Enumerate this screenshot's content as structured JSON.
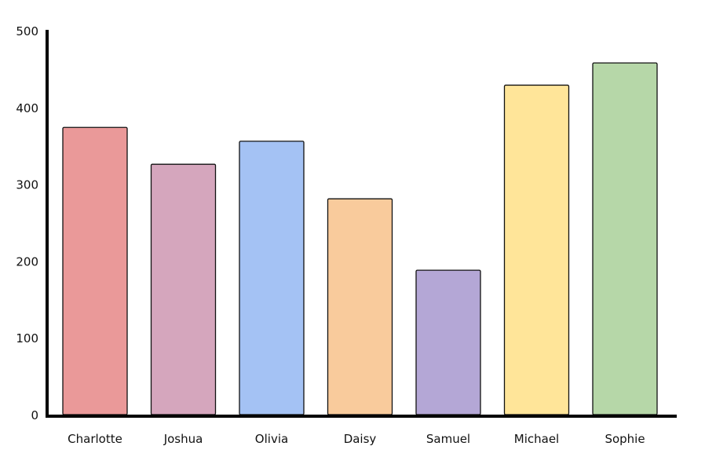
{
  "chart_data": {
    "type": "bar",
    "categories": [
      "Charlotte",
      "Joshua",
      "Olivia",
      "Daisy",
      "Samuel",
      "Michael",
      "Sophie"
    ],
    "values": [
      375,
      327,
      357,
      282,
      189,
      430,
      459
    ],
    "colors": [
      "#ea9999",
      "#d5a6bd",
      "#a4c2f4",
      "#f9cb9c",
      "#b4a7d6",
      "#ffe599",
      "#b6d7a8"
    ],
    "ylim": [
      0,
      500
    ],
    "yticks": [
      "0",
      "100",
      "200",
      "300",
      "400",
      "500"
    ],
    "grid": false,
    "title": "",
    "xlabel": "",
    "ylabel": ""
  }
}
